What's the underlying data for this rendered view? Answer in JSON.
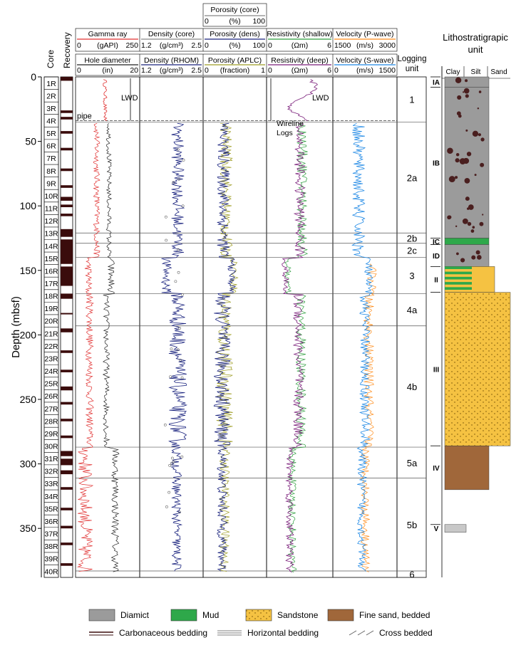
{
  "chart_data": {
    "type": "line",
    "y_axis": {
      "label": "Depth (mbsf)",
      "ylim": [
        0,
        388
      ],
      "ticks": [
        0,
        50,
        100,
        150,
        200,
        250,
        300,
        350
      ]
    },
    "column_headers": {
      "core": "Core",
      "recovery": "Recovery",
      "logging_unit": "Logging unit",
      "litho_title": "Lithostratigrapic unit",
      "grain_labels": [
        "Clay",
        "Silt",
        "Sand"
      ]
    },
    "tracks": [
      {
        "id": "t1",
        "top": {
          "name": "Gamma ray",
          "unit": "(gAPI)",
          "min": "0",
          "max": "250",
          "color": "#e03030"
        },
        "bottom": {
          "name": "Hole diameter",
          "unit": "(in)",
          "min": "0",
          "max": "20",
          "color": "#222222"
        }
      },
      {
        "id": "t2",
        "top": {
          "name": "Density (core)",
          "unit": "(g/cm³)",
          "min": "1.2",
          "max": "2.5",
          "color": "#888888"
        },
        "bottom": {
          "name": "Density (RHOM)",
          "unit": "(g/cm³)",
          "min": "1.2",
          "max": "2.5",
          "color": "#1a237e"
        }
      },
      {
        "id": "t3",
        "extra": {
          "name": "Porosity (core)",
          "unit": "(%)",
          "min": "0",
          "max": "100",
          "color": "#888888"
        },
        "top": {
          "name": "Porosity (dens)",
          "unit": "(%)",
          "min": "0",
          "max": "100",
          "color": "#1a237e"
        },
        "bottom": {
          "name": "Porosity (APLC)",
          "unit": "(fraction)",
          "min": "0",
          "max": "1",
          "color": "#9e9d24"
        }
      },
      {
        "id": "t4",
        "top": {
          "name": "Resistivity (shallow)",
          "unit": "(Ωm)",
          "min": "0",
          "max": "6",
          "color": "#2e9e3e"
        },
        "bottom": {
          "name": "Resistivity (deep)",
          "unit": "(Ωm)",
          "min": "0",
          "max": "6",
          "color": "#7b1f7b"
        }
      },
      {
        "id": "t5",
        "top": {
          "name": "Velocity (P-wave)",
          "unit": "(m/s)",
          "min": "1500",
          "max": "3000",
          "color": "#ff8c1a"
        },
        "bottom": {
          "name": "Velocity (S-wave)",
          "unit": "(m/s)",
          "min": "0",
          "max": "1500",
          "color": "#1e88e5"
        }
      }
    ],
    "cores": [
      "1R",
      "2R",
      "3R",
      "4R",
      "5R",
      "6R",
      "7R",
      "8R",
      "9R",
      "10R",
      "11R",
      "12R",
      "13R",
      "14R",
      "15R",
      "16R",
      "17R",
      "18R",
      "19R",
      "20R",
      "21R",
      "22R",
      "23R",
      "24R",
      "25R",
      "26R",
      "27R",
      "28R",
      "29R",
      "30R",
      "31R",
      "32R",
      "33R",
      "34R",
      "35R",
      "36R",
      "37R",
      "38R",
      "39R",
      "40R"
    ],
    "recovery_intervals": [
      [
        0,
        3
      ],
      [
        26,
        28
      ],
      [
        31,
        33
      ],
      [
        42,
        44
      ],
      [
        55,
        57
      ],
      [
        71,
        73
      ],
      [
        84,
        86
      ],
      [
        93,
        96
      ],
      [
        99,
        101
      ],
      [
        106,
        108
      ],
      [
        118,
        124
      ],
      [
        126,
        145
      ],
      [
        147,
        162
      ],
      [
        168,
        172
      ],
      [
        183,
        184
      ],
      [
        195,
        198
      ],
      [
        212,
        214
      ],
      [
        227,
        229
      ],
      [
        240,
        243
      ],
      [
        252,
        254
      ],
      [
        265,
        267
      ],
      [
        278,
        280
      ],
      [
        290,
        294
      ],
      [
        296,
        301
      ],
      [
        305,
        308
      ],
      [
        318,
        320
      ],
      [
        334,
        336
      ],
      [
        348,
        350
      ],
      [
        361,
        363
      ],
      [
        377,
        379
      ]
    ],
    "logging_units": [
      {
        "label": "1",
        "top": 0,
        "bottom": 35
      },
      {
        "label": "2a",
        "top": 35,
        "bottom": 121
      },
      {
        "label": "2b",
        "top": 121,
        "bottom": 129
      },
      {
        "label": "2c",
        "top": 129,
        "bottom": 140
      },
      {
        "label": "3",
        "top": 140,
        "bottom": 168
      },
      {
        "label": "4a",
        "top": 168,
        "bottom": 193
      },
      {
        "label": "4b",
        "top": 193,
        "bottom": 287
      },
      {
        "label": "5a",
        "top": 287,
        "bottom": 311
      },
      {
        "label": "5b",
        "top": 311,
        "bottom": 383
      },
      {
        "label": "6",
        "top": 383,
        "bottom": 388
      }
    ],
    "litho_units": [
      {
        "label": "IA",
        "top": 0,
        "bottom": 8,
        "pattern": "diamict"
      },
      {
        "label": "IB",
        "top": 8,
        "bottom": 125,
        "pattern": "diamict"
      },
      {
        "label": "IC",
        "top": 125,
        "bottom": 130,
        "pattern": "mud"
      },
      {
        "label": "ID",
        "top": 130,
        "bottom": 147,
        "pattern": "diamict"
      },
      {
        "label": "II",
        "top": 147,
        "bottom": 167,
        "pattern": "mixed"
      },
      {
        "label": "III",
        "top": 167,
        "bottom": 286,
        "pattern": "sandstone"
      },
      {
        "label": "IV",
        "top": 286,
        "bottom": 320,
        "pattern": "finesand"
      },
      {
        "label": "V",
        "top": 347,
        "bottom": 353,
        "pattern": "gray"
      }
    ],
    "annotations": [
      {
        "text": "LWD",
        "track": "t1",
        "depth": 16
      },
      {
        "text": "pipe",
        "track": "t1",
        "depth": 30
      },
      {
        "text": "LWD",
        "track": "t4",
        "depth": 16
      },
      {
        "text": "Wireline Logs",
        "track": "t4",
        "depth": 38
      }
    ],
    "pipe_depth": 34,
    "legend": [
      {
        "label": "Diamict",
        "pattern": "diamict"
      },
      {
        "label": "Mud",
        "pattern": "mud"
      },
      {
        "label": "Sandstone",
        "pattern": "sandstone"
      },
      {
        "label": "Fine sand, bedded",
        "pattern": "finesand"
      },
      {
        "label": "Carbonaceous bedding",
        "pattern": "carb"
      },
      {
        "label": "Horizontal bedding",
        "pattern": "horiz"
      },
      {
        "label": "Cross bedded",
        "pattern": "cross"
      }
    ]
  }
}
